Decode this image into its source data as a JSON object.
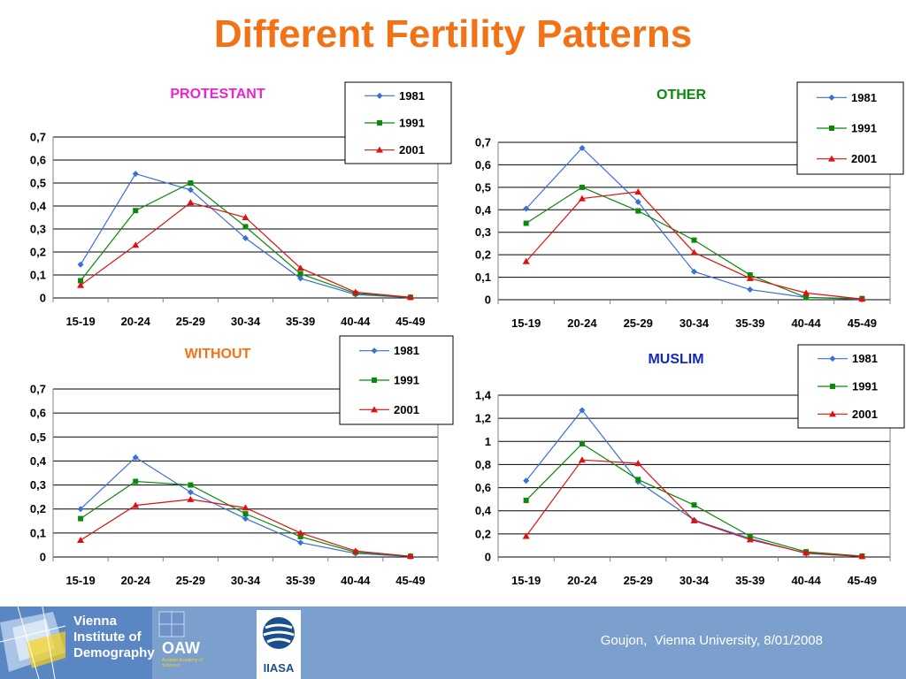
{
  "title": "Different Fertility Patterns",
  "footer": {
    "citation": "Goujon,  Vienna University, 8/01/2008",
    "logo_vid_lines": [
      "Vienna",
      "Institute of",
      "Demography"
    ],
    "logo_oaw": "OAW",
    "logo_oaw_sub": "Austrian Academy of Sciences",
    "logo_iiasa": "IIASA"
  },
  "colors": {
    "title": "#f47216",
    "1981": "#3a6fd8",
    "1991": "#0a8a0a",
    "2001": "#e01010",
    "footer_bg": "#7ba0cd"
  },
  "chart_data": [
    {
      "type": "line",
      "title": "PROTESTANT",
      "title_color": "#ee22cc",
      "categories": [
        "15-19",
        "20-24",
        "25-29",
        "30-34",
        "35-39",
        "40-44",
        "45-49"
      ],
      "y_ticks": [
        "0",
        "0,1",
        "0,2",
        "0,3",
        "0,4",
        "0,5",
        "0,6",
        "0,7"
      ],
      "ylim": [
        0,
        0.7
      ],
      "grid": true,
      "legend_position": "top-right",
      "series": [
        {
          "name": "1981",
          "marker": "diamond",
          "values": [
            0.145,
            0.54,
            0.47,
            0.26,
            0.085,
            0.015,
            0.002
          ]
        },
        {
          "name": "1991",
          "marker": "square",
          "values": [
            0.075,
            0.38,
            0.5,
            0.31,
            0.105,
            0.02,
            0.003
          ]
        },
        {
          "name": "2001",
          "marker": "triangle",
          "values": [
            0.055,
            0.23,
            0.415,
            0.35,
            0.13,
            0.025,
            0.003
          ]
        }
      ]
    },
    {
      "type": "line",
      "title": "OTHER",
      "title_color": "#0a8a0a",
      "categories": [
        "15-19",
        "20-24",
        "25-29",
        "30-34",
        "35-39",
        "40-44",
        "45-49"
      ],
      "y_ticks": [
        "0",
        "0,1",
        "0,2",
        "0,3",
        "0,4",
        "0,5",
        "0,6",
        "0,7"
      ],
      "ylim": [
        0,
        0.7
      ],
      "grid": true,
      "legend_position": "top-right",
      "series": [
        {
          "name": "1981",
          "marker": "diamond",
          "values": [
            0.405,
            0.675,
            0.435,
            0.125,
            0.045,
            0.01,
            0.002
          ]
        },
        {
          "name": "1991",
          "marker": "square",
          "values": [
            0.34,
            0.5,
            0.395,
            0.265,
            0.11,
            0.01,
            0.005
          ]
        },
        {
          "name": "2001",
          "marker": "triangle",
          "values": [
            0.17,
            0.45,
            0.48,
            0.21,
            0.095,
            0.03,
            0.003
          ]
        }
      ]
    },
    {
      "type": "line",
      "title": "WITHOUT",
      "title_color": "#f47216",
      "categories": [
        "15-19",
        "20-24",
        "25-29",
        "30-34",
        "35-39",
        "40-44",
        "45-49"
      ],
      "y_ticks": [
        "0",
        "0,1",
        "0,2",
        "0,3",
        "0,4",
        "0,5",
        "0,6",
        "0,7"
      ],
      "ylim": [
        0,
        0.7
      ],
      "grid": true,
      "legend_position": "top-right",
      "series": [
        {
          "name": "1981",
          "marker": "diamond",
          "values": [
            0.2,
            0.415,
            0.27,
            0.16,
            0.06,
            0.015,
            0.002
          ]
        },
        {
          "name": "1991",
          "marker": "square",
          "values": [
            0.16,
            0.315,
            0.3,
            0.18,
            0.085,
            0.02,
            0.003
          ]
        },
        {
          "name": "2001",
          "marker": "triangle",
          "values": [
            0.07,
            0.215,
            0.24,
            0.205,
            0.1,
            0.025,
            0.003
          ]
        }
      ]
    },
    {
      "type": "line",
      "title": "MUSLIM",
      "title_color": "#1028c0",
      "categories": [
        "15-19",
        "20-24",
        "25-29",
        "30-34",
        "35-39",
        "40-44",
        "45-49"
      ],
      "y_ticks": [
        "0",
        "0,2",
        "0,4",
        "0,6",
        "0,8",
        "1",
        "1,2",
        "1,4"
      ],
      "ylim": [
        0,
        1.4
      ],
      "grid": true,
      "legend_position": "top-right",
      "series": [
        {
          "name": "1981",
          "marker": "diamond",
          "values": [
            0.66,
            1.27,
            0.65,
            0.32,
            0.16,
            0.03,
            0.005
          ]
        },
        {
          "name": "1991",
          "marker": "square",
          "values": [
            0.49,
            0.98,
            0.67,
            0.45,
            0.18,
            0.045,
            0.008
          ]
        },
        {
          "name": "2001",
          "marker": "triangle",
          "values": [
            0.18,
            0.84,
            0.81,
            0.315,
            0.15,
            0.035,
            0.005
          ]
        }
      ]
    }
  ]
}
